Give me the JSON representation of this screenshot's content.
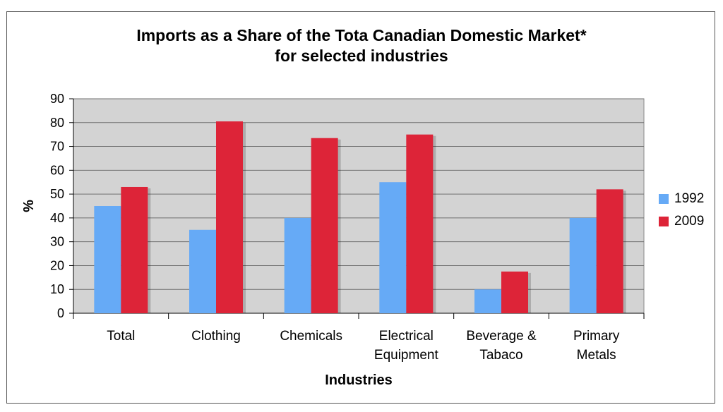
{
  "title_line1": "Imports as a Share of the Tota Canadian Domestic Market*",
  "title_line2": "for selected industries",
  "chart_data": {
    "type": "bar",
    "categories": [
      [
        "Total"
      ],
      [
        "Clothing"
      ],
      [
        "Chemicals"
      ],
      [
        "Electrical",
        "Equipment"
      ],
      [
        "Beverage &",
        "Tabaco"
      ],
      [
        "Primary",
        "Metals"
      ]
    ],
    "series": [
      {
        "name": "1992",
        "color": "#66aaf6",
        "values": [
          45,
          35,
          40,
          55,
          10,
          40
        ]
      },
      {
        "name": "2009",
        "color": "#dd2438",
        "values": [
          53,
          80.5,
          73.5,
          75,
          17.5,
          52
        ]
      }
    ],
    "xlabel": "Industries",
    "ylabel": "%",
    "ylim": [
      0,
      90
    ],
    "yticks": [
      0,
      10,
      20,
      30,
      40,
      50,
      60,
      70,
      80,
      90
    ],
    "grid": true,
    "legend": "right",
    "plot_background": "#d3d3d3"
  }
}
